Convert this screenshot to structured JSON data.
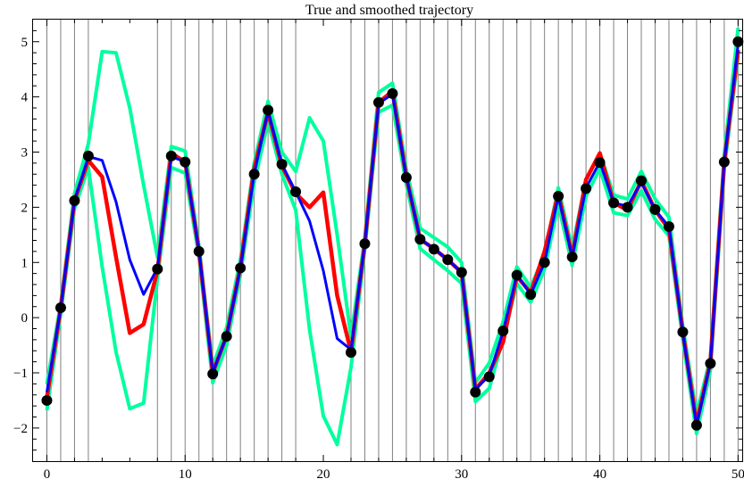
{
  "chart_data": {
    "type": "line",
    "title": "True and smoothed trajectory",
    "xlabel": "",
    "ylabel": "",
    "xlim": [
      -1,
      50.3
    ],
    "ylim": [
      -2.6,
      5.4
    ],
    "x_ticks": [
      0,
      10,
      20,
      30,
      40,
      50
    ],
    "y_ticks": [
      -2,
      -1,
      0,
      1,
      2,
      3,
      4,
      5
    ],
    "grid": "vertical lines at observation times",
    "vertical_lines_x": [
      0,
      1,
      2,
      3,
      8,
      9,
      10,
      11,
      12,
      13,
      14,
      15,
      16,
      17,
      18,
      22,
      23,
      24,
      25,
      26,
      27,
      28,
      29,
      30,
      31,
      32,
      33,
      34,
      35,
      36,
      37,
      38,
      39,
      40,
      41,
      42,
      43,
      44,
      45,
      46,
      47,
      48,
      49,
      50
    ],
    "series": [
      {
        "role": "true",
        "color": "#ff0000",
        "x": [
          0,
          1,
          2,
          3,
          4,
          5,
          6,
          7,
          8,
          9,
          10,
          11,
          12,
          13,
          14,
          15,
          16,
          17,
          18,
          19,
          20,
          21,
          22,
          23,
          24,
          25,
          26,
          27,
          28,
          29,
          30,
          31,
          32,
          33,
          34,
          35,
          36,
          37,
          38,
          39,
          40,
          41,
          42,
          43,
          44,
          45,
          46,
          47,
          48,
          49,
          50
        ],
        "values": [
          -1.45,
          0.18,
          2.12,
          2.85,
          2.55,
          1.1,
          -0.28,
          -0.12,
          0.85,
          2.98,
          2.82,
          1.22,
          -1.0,
          -0.33,
          0.92,
          2.7,
          3.72,
          2.75,
          2.25,
          2.0,
          2.27,
          0.4,
          -0.62,
          1.35,
          3.9,
          4.1,
          2.55,
          1.42,
          1.25,
          1.05,
          0.82,
          -1.3,
          -1.0,
          -0.45,
          0.75,
          0.45,
          1.2,
          2.25,
          1.12,
          2.5,
          2.98,
          2.08,
          1.95,
          2.48,
          1.95,
          1.6,
          -0.25,
          -1.92,
          -0.8,
          2.82,
          4.85
        ]
      },
      {
        "role": "smoothed",
        "color": "#0000ff",
        "x": [
          0,
          1,
          2,
          3,
          4,
          5,
          6,
          7,
          8,
          9,
          10,
          11,
          12,
          13,
          14,
          15,
          16,
          17,
          18,
          19,
          20,
          21,
          22,
          23,
          24,
          25,
          26,
          27,
          28,
          29,
          30,
          31,
          32,
          33,
          34,
          35,
          36,
          37,
          38,
          39,
          40,
          41,
          42,
          43,
          44,
          45,
          46,
          47,
          48,
          49,
          50
        ],
        "values": [
          -1.35,
          0.18,
          2.12,
          2.92,
          2.85,
          2.1,
          1.05,
          0.42,
          0.9,
          2.92,
          2.82,
          1.22,
          -1.0,
          -0.33,
          0.9,
          2.6,
          3.75,
          2.78,
          2.28,
          1.75,
          0.85,
          -0.38,
          -0.58,
          1.35,
          3.88,
          4.05,
          2.55,
          1.42,
          1.25,
          1.05,
          0.82,
          -1.3,
          -1.05,
          -0.25,
          0.78,
          0.42,
          1.0,
          2.2,
          1.1,
          2.35,
          2.82,
          2.08,
          2.02,
          2.45,
          1.95,
          1.65,
          -0.27,
          -1.95,
          -0.82,
          2.82,
          4.95
        ]
      },
      {
        "role": "upper bound",
        "color": "#00ff9f",
        "x": [
          0,
          1,
          2,
          3,
          4,
          5,
          6,
          7,
          8,
          9,
          10,
          11,
          12,
          13,
          14,
          15,
          16,
          17,
          18,
          19,
          20,
          21,
          22,
          23,
          24,
          25,
          26,
          27,
          28,
          29,
          30,
          31,
          32,
          33,
          34,
          35,
          36,
          37,
          38,
          39,
          40,
          41,
          42,
          43,
          44,
          45,
          46,
          47,
          48,
          49,
          50
        ],
        "values": [
          -1.2,
          0.25,
          2.25,
          3.15,
          4.82,
          4.8,
          3.8,
          2.4,
          1.1,
          3.1,
          3.02,
          1.3,
          -0.88,
          -0.18,
          1.05,
          2.8,
          3.92,
          3.0,
          2.65,
          3.62,
          3.2,
          1.5,
          -0.35,
          1.45,
          4.08,
          4.25,
          2.68,
          1.62,
          1.45,
          1.28,
          1.0,
          -1.18,
          -0.82,
          -0.08,
          0.92,
          0.55,
          1.15,
          2.35,
          1.25,
          2.5,
          2.98,
          2.22,
          2.15,
          2.65,
          2.15,
          1.82,
          -0.15,
          -1.75,
          -0.72,
          2.95,
          5.25
        ]
      },
      {
        "role": "lower bound",
        "color": "#00ff9f",
        "x": [
          0,
          1,
          2,
          3,
          4,
          5,
          6,
          7,
          8,
          9,
          10,
          11,
          12,
          13,
          14,
          15,
          16,
          17,
          18,
          19,
          20,
          21,
          22,
          23,
          24,
          25,
          26,
          27,
          28,
          29,
          30,
          31,
          32,
          33,
          34,
          35,
          36,
          37,
          38,
          39,
          40,
          41,
          42,
          43,
          44,
          45,
          46,
          47,
          48,
          49,
          50
        ],
        "values": [
          -1.68,
          0.08,
          1.98,
          2.72,
          0.92,
          -0.62,
          -1.65,
          -1.55,
          0.72,
          2.72,
          2.62,
          1.12,
          -1.18,
          -0.5,
          0.78,
          2.45,
          3.55,
          2.6,
          1.95,
          -0.22,
          -1.78,
          -2.3,
          -0.9,
          1.25,
          3.72,
          3.85,
          2.42,
          1.25,
          1.05,
          0.85,
          0.62,
          -1.52,
          -1.28,
          -0.38,
          0.62,
          0.28,
          0.88,
          2.05,
          0.95,
          2.2,
          2.7,
          1.9,
          1.85,
          2.3,
          1.78,
          1.48,
          -0.38,
          -2.1,
          -0.95,
          2.7,
          4.75
        ]
      },
      {
        "role": "observations",
        "color": "#000000",
        "x": [
          0,
          1,
          2,
          3,
          8,
          9,
          10,
          11,
          12,
          13,
          14,
          15,
          16,
          17,
          18,
          22,
          23,
          24,
          25,
          26,
          27,
          28,
          29,
          30,
          31,
          32,
          33,
          34,
          35,
          36,
          37,
          38,
          39,
          40,
          41,
          42,
          43,
          44,
          45,
          46,
          47,
          48,
          49,
          50
        ],
        "values": [
          -1.5,
          0.18,
          2.12,
          2.93,
          0.88,
          2.93,
          2.82,
          1.2,
          -1.02,
          -0.34,
          0.9,
          2.6,
          3.76,
          2.78,
          2.28,
          -0.63,
          1.34,
          3.9,
          4.06,
          2.54,
          1.42,
          1.24,
          1.05,
          0.82,
          -1.35,
          -1.07,
          -0.24,
          0.77,
          0.42,
          1.0,
          2.2,
          1.1,
          2.34,
          2.81,
          2.08,
          2.0,
          2.48,
          1.96,
          1.65,
          -0.26,
          -1.95,
          -0.83,
          2.82,
          5.0
        ]
      }
    ]
  }
}
